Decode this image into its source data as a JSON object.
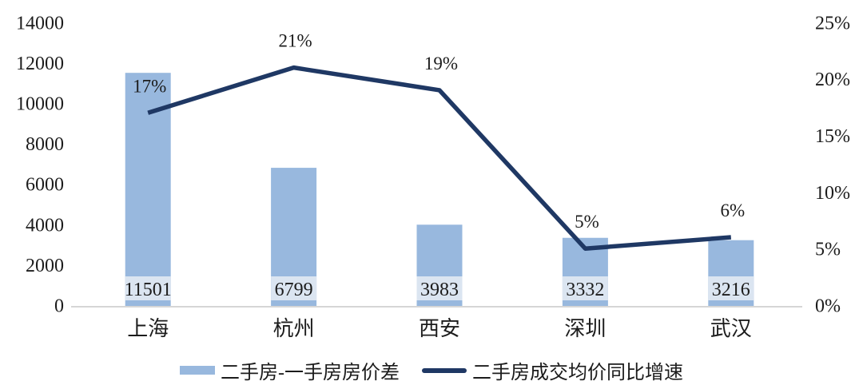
{
  "chart_data": {
    "type": "bar",
    "subtype": "combo-bar-line-dual-axis",
    "categories": [
      "上海",
      "杭州",
      "西安",
      "深圳",
      "武汉"
    ],
    "series": [
      {
        "name": "二手房-一手房房价差",
        "type": "bar",
        "axis": "left",
        "values": [
          11501,
          6799,
          3983,
          3332,
          3216
        ],
        "data_labels": [
          "11501",
          "6799",
          "3983",
          "3332",
          "3216"
        ],
        "color": "#98b8de",
        "label_band_color": "#dbe5f1"
      },
      {
        "name": "二手房成交均价同比增速",
        "type": "line",
        "axis": "right",
        "values": [
          17,
          21,
          19,
          5,
          6
        ],
        "data_labels": [
          "17%",
          "21%",
          "19%",
          "5%",
          "6%"
        ],
        "color": "#1f3864"
      }
    ],
    "left_axis": {
      "min": 0,
      "max": 14000,
      "tick_step": 2000,
      "ticks": [
        "14000",
        "12000",
        "10000",
        "8000",
        "6000",
        "4000",
        "2000",
        "0"
      ]
    },
    "right_axis": {
      "min": 0,
      "max": 25,
      "tick_step": 5,
      "ticks": [
        "25%",
        "20%",
        "15%",
        "10%",
        "5%",
        "0%"
      ]
    },
    "legend": {
      "position": "bottom",
      "items": [
        {
          "label": "二手房-一手房房价差",
          "swatch": "bar"
        },
        {
          "label": "二手房成交均价同比增速",
          "swatch": "line"
        }
      ]
    },
    "grid": "off",
    "title": "",
    "background": "#ffffff",
    "axis_line_color": "#d6d6d6",
    "text_color": "#1c1c1c"
  }
}
